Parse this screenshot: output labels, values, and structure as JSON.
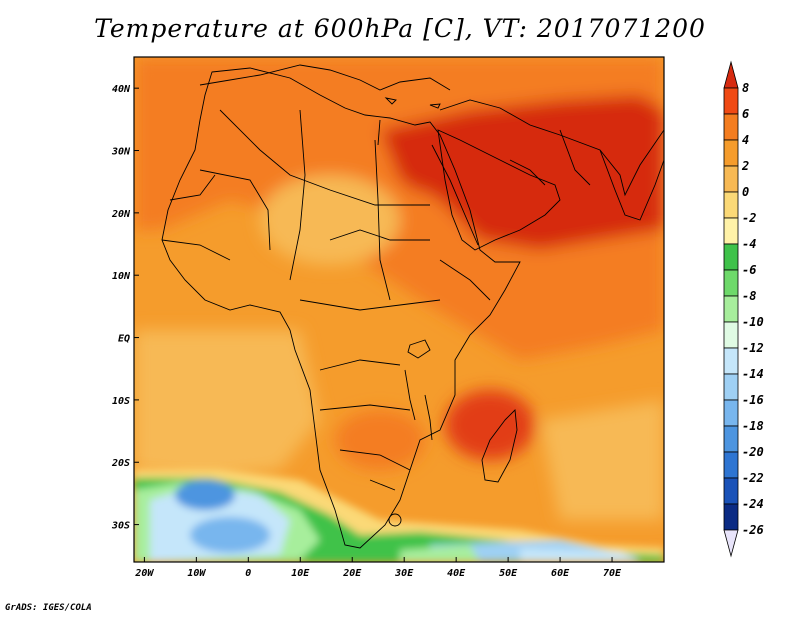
{
  "title": "Temperature at 600hPa [C], VT: 2017071200",
  "credit": "GrADS: IGES/COLA",
  "map": {
    "region": "Africa and Middle East",
    "lon_range": [
      -22,
      80
    ],
    "lat_range": [
      -36,
      45
    ],
    "lon_ticks": [
      {
        "value": -20,
        "label": "20W"
      },
      {
        "value": -10,
        "label": "10W"
      },
      {
        "value": 0,
        "label": "0"
      },
      {
        "value": 10,
        "label": "10E"
      },
      {
        "value": 20,
        "label": "20E"
      },
      {
        "value": 30,
        "label": "30E"
      },
      {
        "value": 40,
        "label": "40E"
      },
      {
        "value": 50,
        "label": "50E"
      },
      {
        "value": 60,
        "label": "60E"
      },
      {
        "value": 70,
        "label": "70E"
      }
    ],
    "lat_ticks": [
      {
        "value": 40,
        "label": "40N"
      },
      {
        "value": 30,
        "label": "30N"
      },
      {
        "value": 20,
        "label": "20N"
      },
      {
        "value": 10,
        "label": "10N"
      },
      {
        "value": 0,
        "label": "EQ"
      },
      {
        "value": -10,
        "label": "10S"
      },
      {
        "value": -20,
        "label": "20S"
      },
      {
        "value": -30,
        "label": "30S"
      }
    ]
  },
  "colorbar": {
    "levels": [
      "8",
      "6",
      "4",
      "2",
      "0",
      "-2",
      "-4",
      "-6",
      "-8",
      "-10",
      "-12",
      "-14",
      "-16",
      "-18",
      "-20",
      "-22",
      "-24",
      "-26"
    ],
    "colors": [
      "#d62a10",
      "#f04a14",
      "#f47d20",
      "#f59c2c",
      "#f7b954",
      "#fbd977",
      "#fff2a8",
      "#3fc24a",
      "#6ed96a",
      "#a7ee9c",
      "#e0fbe4",
      "#c5e6fa",
      "#9fd0f4",
      "#78b6ee",
      "#4d95e0",
      "#2e75d2",
      "#1a52b8",
      "#0b2b84",
      "#e8e4fa"
    ]
  },
  "colors": {
    "temp_warmest": "#d62a10",
    "temp_warm": "#f47d20",
    "temp_mild": "#f59c2c",
    "temp_cool_green": "#3fc24a",
    "temp_cold_blue": "#78b6ee"
  }
}
